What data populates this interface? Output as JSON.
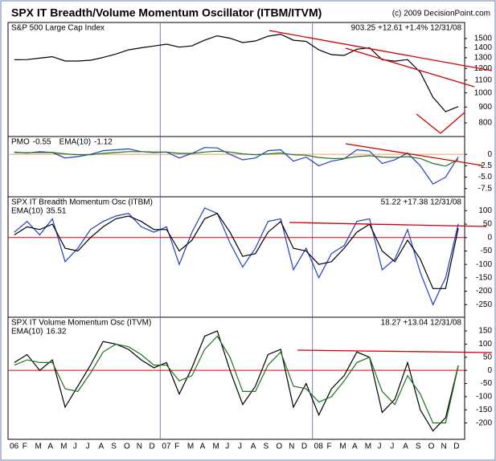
{
  "title": "SPX IT Breadth/Volume Momentum Oscillator (ITBM/ITVM)",
  "source": "(c) 2009 DecisionPoint.com",
  "chart_data": [
    {
      "type": "line",
      "log": true,
      "panel_title": "S&P 500 Large Cap Index",
      "readout": "903.25 +12.61 +1.4% 12/31/08",
      "ylim": [
        740,
        1650
      ],
      "yticks": [
        800,
        900,
        1000,
        1100,
        1200,
        1300,
        1400,
        1500
      ],
      "series": [
        {
          "name": "S&P 500",
          "color": "#000000",
          "values": [
            1280,
            1282,
            1296,
            1310,
            1268,
            1268,
            1276,
            1302,
            1336,
            1378,
            1400,
            1418,
            1438,
            1406,
            1420,
            1482,
            1530,
            1503,
            1455,
            1473,
            1526,
            1549,
            1481,
            1468,
            1378,
            1330,
            1322,
            1385,
            1400,
            1280,
            1267,
            1282,
            1166,
            968,
            870,
            903
          ]
        }
      ]
    },
    {
      "type": "line",
      "ylim": [
        -8.6,
        3.2
      ],
      "yticks": [
        0,
        -2.5,
        {
          "value": -5,
          "label": "-5.0"
        },
        {
          "value": -7.5,
          "label": "-7.5"
        }
      ],
      "hline": {
        "value": 0,
        "color": "#f0a060"
      },
      "series": [
        {
          "name": "PMO",
          "legend_value": -0.55,
          "color": "#2040c0",
          "values": [
            0.5,
            0.3,
            0.6,
            0.4,
            -0.8,
            -0.5,
            0,
            0.8,
            1,
            1.2,
            0.6,
            0.4,
            0.5,
            -0.8,
            0.2,
            1.5,
            1.4,
            0,
            -1.2,
            -0.8,
            0.8,
            1,
            -1.5,
            -0.6,
            -2.5,
            -1.5,
            -1,
            1,
            0.7,
            -2,
            -1.2,
            0.3,
            -2.5,
            -6.5,
            -5,
            -0.55
          ]
        },
        {
          "name": "EMA(10)",
          "legend_value": -1.12,
          "color": "#207020",
          "values": [
            0.4,
            0.35,
            0.4,
            0.4,
            0.1,
            -0.1,
            -0.1,
            0.2,
            0.4,
            0.6,
            0.6,
            0.5,
            0.5,
            0.2,
            0.2,
            0.5,
            0.7,
            0.5,
            0.1,
            -0.1,
            0.1,
            0.3,
            -0.1,
            -0.2,
            -0.7,
            -0.9,
            -0.9,
            -0.5,
            -0.3,
            -0.6,
            -0.7,
            -0.5,
            -0.9,
            -2,
            -2.6,
            -1.12
          ]
        }
      ]
    },
    {
      "type": "line",
      "panel_title": "SPX IT Breadth Momentum Osc (ITBM)",
      "readout": "51.22 +17.38 12/31/08",
      "ylim": [
        -285,
        140
      ],
      "yticks": [
        100,
        50,
        0,
        -50,
        -100,
        -150,
        -200,
        -250
      ],
      "hline": {
        "value": 0,
        "color": "#e00000"
      },
      "series": [
        {
          "name": "ITBM",
          "color": "#2040c0",
          "values": [
            20,
            60,
            10,
            70,
            -90,
            -40,
            30,
            60,
            80,
            90,
            40,
            20,
            40,
            -100,
            20,
            110,
            90,
            -20,
            -110,
            -40,
            60,
            70,
            -120,
            -40,
            -150,
            -60,
            -30,
            60,
            70,
            -120,
            -80,
            30,
            -130,
            -250,
            -150,
            51.22
          ]
        },
        {
          "name": "EMA(10)",
          "legend_value": 35.51,
          "color": "#000000",
          "values": [
            10,
            40,
            30,
            50,
            -40,
            -50,
            0,
            40,
            70,
            80,
            60,
            30,
            30,
            -50,
            -10,
            70,
            90,
            20,
            -70,
            -60,
            20,
            60,
            -40,
            -50,
            -100,
            -90,
            -40,
            20,
            50,
            -50,
            -90,
            -10,
            -80,
            -190,
            -190,
            35.51
          ]
        }
      ]
    },
    {
      "type": "line",
      "panel_title": "SPX IT Volume Momentum Osc (ITVM)",
      "readout": "18.27 +13.04 12/31/08",
      "ylim": [
        -250,
        190
      ],
      "yticks": [
        150,
        100,
        50,
        0,
        -50,
        -100,
        -150,
        -200
      ],
      "hline": {
        "value": 0,
        "color": "#e00000"
      },
      "categories": [
        "06",
        "F",
        "M",
        "A",
        "M",
        "J",
        "J",
        "A",
        "S",
        "O",
        "N",
        "D",
        "07",
        "F",
        "M",
        "A",
        "M",
        "J",
        "J",
        "A",
        "S",
        "O",
        "N",
        "D",
        "08",
        "F",
        "M",
        "A",
        "M",
        "J",
        "J",
        "A",
        "S",
        "O",
        "N",
        "D"
      ],
      "series": [
        {
          "name": "ITVM",
          "color": "#000000",
          "values": [
            30,
            60,
            0,
            40,
            -140,
            -60,
            20,
            110,
            100,
            80,
            40,
            10,
            30,
            -90,
            10,
            130,
            150,
            0,
            -130,
            -60,
            60,
            80,
            -140,
            -50,
            -170,
            -70,
            -20,
            70,
            50,
            -160,
            -110,
            30,
            -150,
            -230,
            -180,
            18.27
          ]
        },
        {
          "name": "EMA(10)",
          "legend_value": 16.32,
          "color": "#207020",
          "values": [
            20,
            40,
            30,
            30,
            -70,
            -80,
            -10,
            70,
            100,
            90,
            60,
            20,
            20,
            -40,
            -20,
            80,
            130,
            50,
            -80,
            -80,
            20,
            70,
            -60,
            -70,
            -120,
            -100,
            -40,
            30,
            50,
            -80,
            -130,
            -20,
            -90,
            -200,
            -200,
            16.32
          ]
        }
      ]
    }
  ]
}
